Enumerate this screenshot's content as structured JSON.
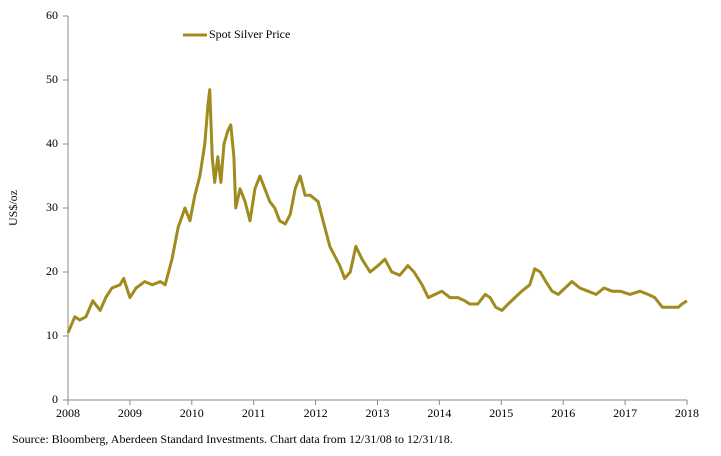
{
  "chart_data": {
    "type": "line",
    "y_label": "US$/oz",
    "source": "Source: Bloomberg,  Aberdeen Standard Investments. Chart data from  12/31/08  to 12/31/18.",
    "xlim": [
      2008,
      2018
    ],
    "xticks": [
      2008,
      2009,
      2010,
      2011,
      2012,
      2013,
      2014,
      2015,
      2016,
      2017,
      2018
    ],
    "ylim": [
      0,
      60
    ],
    "yticks": [
      0,
      10,
      20,
      30,
      40,
      50,
      60
    ],
    "legend": "top-left",
    "series": [
      {
        "name": "Spot Silver Price",
        "color": "#a08b1e",
        "x": [
          2008.0,
          2008.11,
          2008.19,
          2008.29,
          2008.4,
          2008.52,
          2008.61,
          2008.71,
          2008.84,
          2008.9,
          2009.0,
          2009.1,
          2009.24,
          2009.36,
          2009.49,
          2009.57,
          2009.68,
          2009.78,
          2009.89,
          2009.97,
          2010.05,
          2010.13,
          2010.21,
          2010.26,
          2010.29,
          2010.33,
          2010.37,
          2010.42,
          2010.47,
          2010.52,
          2010.58,
          2010.63,
          2010.68,
          2010.71,
          2010.78,
          2010.86,
          2010.94,
          2011.02,
          2011.1,
          2011.18,
          2011.26,
          2011.34,
          2011.42,
          2011.51,
          2011.59,
          2011.67,
          2011.75,
          2011.83,
          2011.91,
          2012.04,
          2012.12,
          2012.23,
          2012.31,
          2012.39,
          2012.47,
          2012.56,
          2012.65,
          2012.75,
          2012.88,
          2013.01,
          2013.12,
          2013.23,
          2013.36,
          2013.49,
          2013.59,
          2013.72,
          2013.82,
          2013.93,
          2014.04,
          2014.17,
          2014.3,
          2014.41,
          2014.49,
          2014.62,
          2014.74,
          2014.82,
          2014.91,
          2015.01,
          2015.11,
          2015.22,
          2015.33,
          2015.46,
          2015.54,
          2015.63,
          2015.72,
          2015.82,
          2015.92,
          2016.03,
          2016.14,
          2016.27,
          2016.4,
          2016.53,
          2016.66,
          2016.79,
          2016.92,
          2017.08,
          2017.24,
          2017.37,
          2017.48,
          2017.6,
          2017.73,
          2017.86,
          2017.92,
          2018.0
        ],
        "values": [
          10.5,
          13,
          12.5,
          13,
          15.5,
          14,
          16,
          17.5,
          18,
          19,
          16,
          17.5,
          18.5,
          18,
          18.5,
          18,
          22,
          27,
          30,
          28,
          32,
          35,
          40,
          46,
          48.5,
          38,
          34,
          38,
          34,
          40,
          42,
          43,
          38,
          30,
          33,
          31,
          28,
          33,
          35,
          33,
          31,
          30,
          28,
          27.5,
          29,
          33,
          35,
          32,
          32,
          31,
          28,
          24,
          22.5,
          21,
          19,
          20,
          24,
          22,
          20,
          21,
          22,
          20,
          19.5,
          21,
          20,
          18,
          16,
          16.5,
          17,
          16,
          16,
          15.5,
          15,
          15,
          16.5,
          16,
          14.5,
          14,
          15,
          16,
          17,
          18,
          20.5,
          20,
          18.5,
          17,
          16.5,
          17.5,
          18.5,
          17.5,
          17,
          16.5,
          17.5,
          17,
          17,
          16.5,
          17,
          16.5,
          16,
          14.5,
          14.5,
          14.5,
          15,
          15.5
        ]
      }
    ]
  }
}
